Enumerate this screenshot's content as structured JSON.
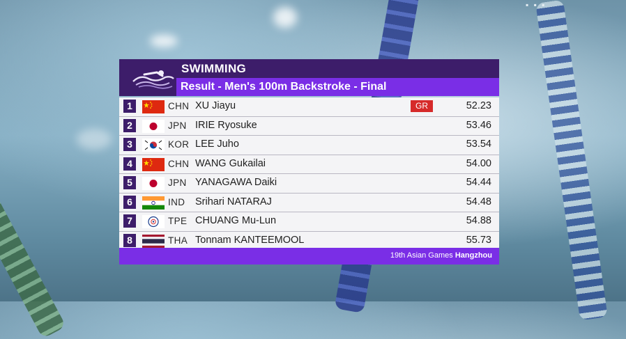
{
  "header": {
    "sport": "SWIMMING",
    "event": "Result - Men's 100m Backstroke - Final"
  },
  "results": [
    {
      "rank": "1",
      "noc": "CHN",
      "name": "XU Jiayu",
      "record": "GR",
      "time": "52.23",
      "flag": "china-flag"
    },
    {
      "rank": "2",
      "noc": "JPN",
      "name": "IRIE Ryosuke",
      "record": "",
      "time": "53.46",
      "flag": "japan-flag"
    },
    {
      "rank": "3",
      "noc": "KOR",
      "name": "LEE Juho",
      "record": "",
      "time": "53.54",
      "flag": "korea-flag"
    },
    {
      "rank": "4",
      "noc": "CHN",
      "name": "WANG Gukailai",
      "record": "",
      "time": "54.00",
      "flag": "china-flag"
    },
    {
      "rank": "5",
      "noc": "JPN",
      "name": "YANAGAWA Daiki",
      "record": "",
      "time": "54.44",
      "flag": "japan-flag"
    },
    {
      "rank": "6",
      "noc": "IND",
      "name": "Srihari NATARAJ",
      "record": "",
      "time": "54.48",
      "flag": "india-flag"
    },
    {
      "rank": "7",
      "noc": "TPE",
      "name": "CHUANG Mu-Lun",
      "record": "",
      "time": "54.88",
      "flag": "chinese-taipei-flag"
    },
    {
      "rank": "8",
      "noc": "THA",
      "name": "Tonnam KANTEEMOOL",
      "record": "",
      "time": "55.73",
      "flag": "thailand-flag"
    }
  ],
  "footer": {
    "games": "19th Asian Games",
    "city": "Hangzhou"
  },
  "colors": {
    "header_dark": "#3d1d6a",
    "header_accent": "#7a2ee6",
    "record_badge": "#d62a2a"
  }
}
